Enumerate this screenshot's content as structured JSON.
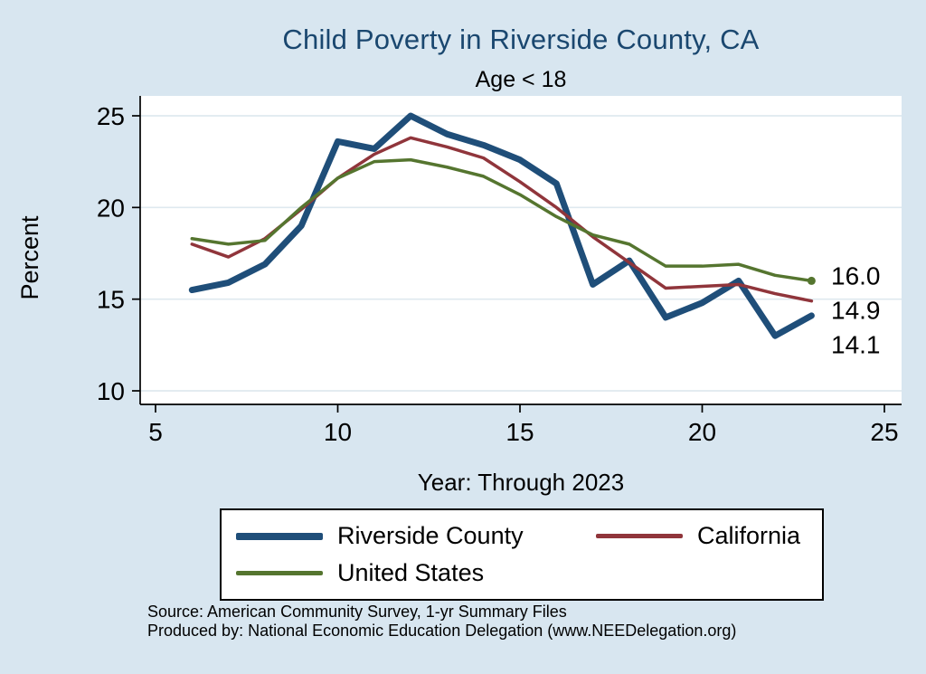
{
  "title": "Child Poverty in Riverside County, CA",
  "subtitle": "Age < 18",
  "xlabel": "Year: Through 2023",
  "ylabel": "Percent",
  "source_line1": "Source: American Community Survey, 1-yr Summary Files",
  "source_line2": "Produced by: National Economic Education Delegation (www.NEEDelegation.org)",
  "colors": {
    "riverside": "#1f4e79",
    "california": "#90353b",
    "us": "#55752f",
    "title": "#1a476f",
    "background": "#d8e6f0",
    "grid": "#dfe9ef",
    "axis": "#000000"
  },
  "chart_data": {
    "type": "line",
    "x": [
      6,
      7,
      8,
      9,
      10,
      11,
      12,
      13,
      14,
      15,
      16,
      17,
      18,
      19,
      20,
      21,
      22,
      23
    ],
    "series": [
      {
        "name": "Riverside County",
        "color_key": "riverside",
        "width": 7,
        "values": [
          15.5,
          15.9,
          16.9,
          19.0,
          23.6,
          23.2,
          25.0,
          24.0,
          23.4,
          22.6,
          21.3,
          15.8,
          17.1,
          14.0,
          14.8,
          16.0,
          13.0,
          14.1
        ],
        "end_label": "14.1"
      },
      {
        "name": "California",
        "color_key": "california",
        "width": 3.5,
        "values": [
          18.0,
          17.3,
          18.3,
          19.9,
          21.6,
          22.9,
          23.8,
          23.3,
          22.7,
          21.4,
          20.0,
          18.4,
          17.0,
          15.6,
          15.7,
          15.8,
          15.3,
          14.9
        ],
        "end_label": "14.9"
      },
      {
        "name": "United States",
        "color_key": "us",
        "width": 3.5,
        "values": [
          18.3,
          18.0,
          18.2,
          20.0,
          21.6,
          22.5,
          22.6,
          22.2,
          21.7,
          20.7,
          19.5,
          18.5,
          18.0,
          16.8,
          16.8,
          16.9,
          16.3,
          16.0
        ],
        "end_label": "16.0"
      }
    ],
    "x_ticks": [
      5,
      10,
      15,
      20,
      25
    ],
    "y_ticks": [
      10,
      15,
      20,
      25
    ],
    "xlim": [
      5,
      25
    ],
    "ylim": [
      9.2,
      25.8
    ],
    "grid": "horizontal",
    "legend_position": "bottom",
    "legend_order": [
      "Riverside County",
      "California",
      "United States"
    ]
  }
}
